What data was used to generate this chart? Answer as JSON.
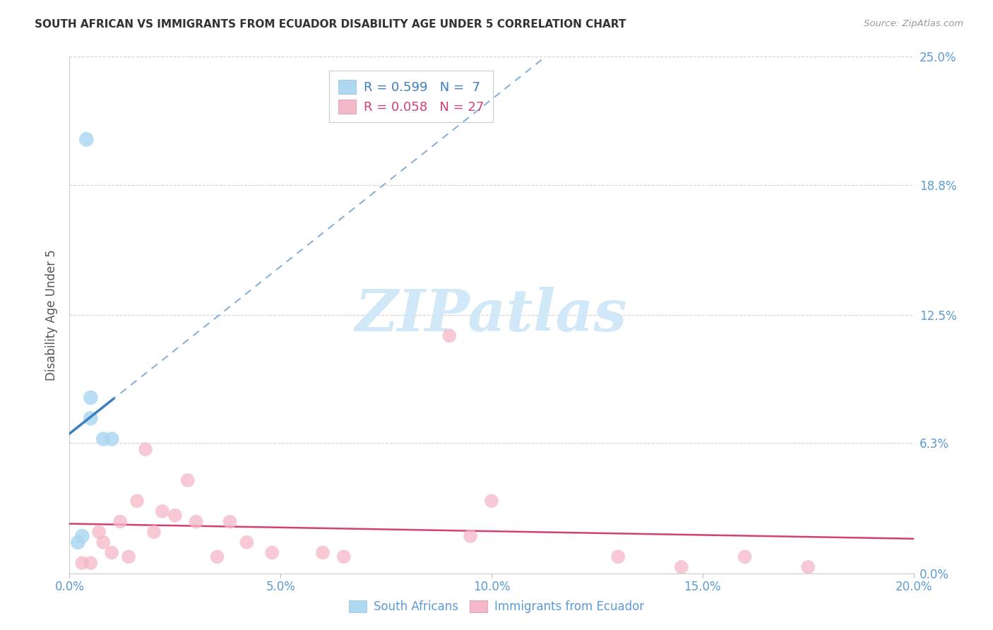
{
  "title": "SOUTH AFRICAN VS IMMIGRANTS FROM ECUADOR DISABILITY AGE UNDER 5 CORRELATION CHART",
  "source": "Source: ZipAtlas.com",
  "ylabel": "Disability Age Under 5",
  "xlim": [
    0.0,
    0.2
  ],
  "ylim": [
    0.0,
    0.25
  ],
  "xtick_vals": [
    0.0,
    0.05,
    0.1,
    0.15,
    0.2
  ],
  "xtick_labels": [
    "0.0%",
    "5.0%",
    "10.0%",
    "15.0%",
    "20.0%"
  ],
  "ytick_vals": [
    0.0,
    0.063,
    0.125,
    0.188,
    0.25
  ],
  "ytick_labels": [
    "0.0%",
    "6.3%",
    "12.5%",
    "18.8%",
    "25.0%"
  ],
  "blue_R": 0.599,
  "blue_N": 7,
  "pink_R": 0.058,
  "pink_N": 27,
  "legend_label_1": "South Africans",
  "legend_label_2": "Immigrants from Ecuador",
  "blue_fill_color": "#add8f0",
  "pink_fill_color": "#f4b8c8",
  "blue_line_color": "#3a7ebf",
  "pink_line_color": "#d44070",
  "blue_scatter_x": [
    0.004,
    0.005,
    0.005,
    0.008,
    0.01,
    0.002,
    0.003
  ],
  "blue_scatter_y": [
    0.21,
    0.085,
    0.075,
    0.065,
    0.065,
    0.015,
    0.018
  ],
  "pink_scatter_x": [
    0.003,
    0.005,
    0.007,
    0.008,
    0.01,
    0.012,
    0.014,
    0.016,
    0.018,
    0.02,
    0.022,
    0.025,
    0.028,
    0.03,
    0.035,
    0.038,
    0.042,
    0.048,
    0.06,
    0.065,
    0.09,
    0.095,
    0.1,
    0.13,
    0.145,
    0.16,
    0.175
  ],
  "pink_scatter_y": [
    0.005,
    0.005,
    0.02,
    0.015,
    0.01,
    0.025,
    0.008,
    0.035,
    0.06,
    0.02,
    0.03,
    0.028,
    0.045,
    0.025,
    0.008,
    0.025,
    0.015,
    0.01,
    0.01,
    0.008,
    0.115,
    0.018,
    0.035,
    0.008,
    0.003,
    0.008,
    0.003
  ],
  "watermark_text": "ZIPatlas",
  "watermark_color": "#d0e8f8",
  "background_color": "#ffffff",
  "grid_color": "#cccccc",
  "tick_color": "#5b9bd5",
  "title_color": "#333333",
  "source_color": "#999999",
  "ylabel_color": "#555555"
}
